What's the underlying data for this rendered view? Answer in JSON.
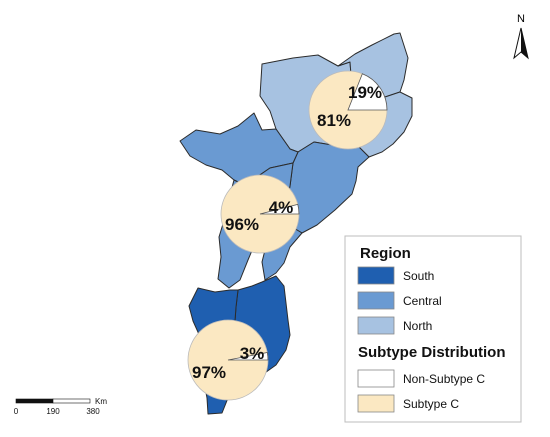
{
  "north_arrow": {
    "label": "N",
    "icon": "north-arrow-icon"
  },
  "colors": {
    "south": "#1f5fb0",
    "central": "#6a9ad2",
    "north": "#a7c2e1",
    "border": "#2b2b2b",
    "subtype_c": "#fbe8c2",
    "non_subtype_c": "#ffffff"
  },
  "legend": {
    "region_title": "Region",
    "regions": [
      {
        "label": "South",
        "color": "#1f5fb0"
      },
      {
        "label": "Central",
        "color": "#6a9ad2"
      },
      {
        "label": "North",
        "color": "#a7c2e1"
      }
    ],
    "subtype_title": "Subtype Distribution",
    "subtypes": [
      {
        "label": "Non-Subtype C",
        "color": "#ffffff"
      },
      {
        "label": "Subtype C",
        "color": "#fbe8c2"
      }
    ]
  },
  "pies": [
    {
      "region": "North",
      "non_subtype_c_pct": 19,
      "subtype_c_pct": 81,
      "non_subtype_c_label": "19%",
      "subtype_c_label": "81%"
    },
    {
      "region": "Central",
      "non_subtype_c_pct": 4,
      "subtype_c_pct": 96,
      "non_subtype_c_label": "4%",
      "subtype_c_label": "96%"
    },
    {
      "region": "South",
      "non_subtype_c_pct": 3,
      "subtype_c_pct": 97,
      "non_subtype_c_label": "3%",
      "subtype_c_label": "97%"
    }
  ],
  "scale_bar": {
    "ticks": [
      "0",
      "190",
      "380"
    ],
    "unit": "Km"
  }
}
